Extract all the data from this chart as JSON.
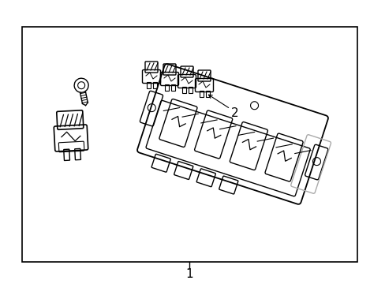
{
  "background_color": "#ffffff",
  "border_color": "#000000",
  "line_color": "#000000",
  "gray_color": "#aaaaaa",
  "label1_text": "1",
  "label2_text": "2",
  "fig_width": 4.89,
  "fig_height": 3.6,
  "dpi": 100
}
